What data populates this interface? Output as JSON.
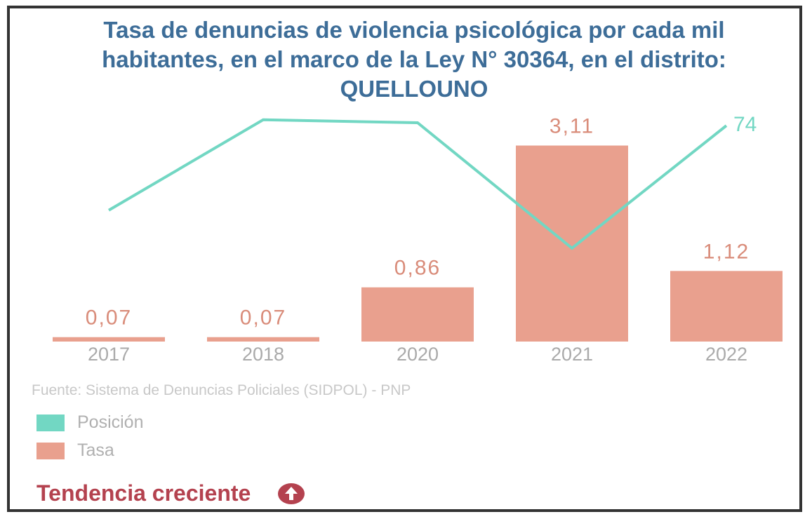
{
  "chart_data": {
    "type": "bar-line",
    "title": "Tasa de denuncias de violencia psicológica por cada mil habitantes, en el marco de la Ley N° 30364, en el distrito: QUELLOUNO",
    "categories": [
      "2017",
      "2018",
      "2020",
      "2021",
      "2022"
    ],
    "series": [
      {
        "name": "Posición",
        "type": "line",
        "axis": "y2",
        "color": "#72d7c3",
        "values": [
          45,
          76,
          75,
          32,
          74
        ],
        "value_labels": [
          null,
          null,
          null,
          null,
          "74"
        ]
      },
      {
        "name": "Tasa",
        "type": "bar",
        "color": "#e9a08e",
        "values": [
          0.07,
          0.07,
          0.86,
          3.11,
          1.12
        ],
        "value_labels": [
          "0,07",
          "0,07",
          "0,86",
          "3,11",
          "1,12"
        ]
      }
    ],
    "ylim": [
      0,
      3.75
    ],
    "y2lim": [
      0,
      81
    ],
    "source": "Fuente: Sistema de Denuncias Policiales (SIDPOL) - PNP",
    "trend": "Tendencia creciente"
  }
}
